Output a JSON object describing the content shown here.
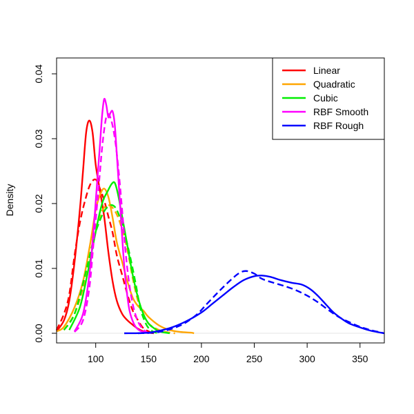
{
  "chart_data": {
    "type": "line",
    "title": "",
    "xlabel": "",
    "ylabel": "Density",
    "xlim": [
      63,
      373
    ],
    "ylim": [
      0,
      0.042
    ],
    "x_ticks": [
      100,
      150,
      200,
      250,
      300,
      350
    ],
    "y_ticks": [
      0.0,
      0.01,
      0.02,
      0.03,
      0.04
    ],
    "y_tick_labels": [
      "0.00",
      "0.01",
      "0.02",
      "0.03",
      "0.04"
    ],
    "grid": false,
    "legend_position": "top-right",
    "series": [
      {
        "name": "Linear",
        "color": "#ff0000",
        "style": "solid",
        "x": [
          63,
          70,
          75,
          80,
          85,
          88,
          91,
          94,
          97,
          100,
          104,
          108,
          112,
          116,
          120,
          125,
          130,
          135,
          140,
          145,
          150,
          155
        ],
        "y": [
          0.0003,
          0.002,
          0.005,
          0.011,
          0.019,
          0.025,
          0.031,
          0.0328,
          0.031,
          0.026,
          0.022,
          0.018,
          0.0125,
          0.008,
          0.005,
          0.003,
          0.002,
          0.0013,
          0.0007,
          0.0003,
          0.0001,
          0
        ]
      },
      {
        "name": "Linear",
        "color": "#ff0000",
        "style": "dashed",
        "x": [
          63,
          70,
          75,
          80,
          85,
          90,
          95,
          100,
          104,
          108,
          112,
          116,
          120,
          125,
          130,
          135,
          140,
          145,
          150,
          155
        ],
        "y": [
          0.0005,
          0.003,
          0.006,
          0.012,
          0.017,
          0.0205,
          0.023,
          0.0237,
          0.0223,
          0.0205,
          0.018,
          0.0155,
          0.012,
          0.009,
          0.006,
          0.0035,
          0.002,
          0.0008,
          0.0003,
          0
        ]
      },
      {
        "name": "Quadratic",
        "color": "#ffa500",
        "style": "solid",
        "x": [
          63,
          70,
          80,
          88,
          95,
          100,
          104,
          108,
          112,
          116,
          120,
          125,
          130,
          135,
          140,
          145,
          150,
          160,
          170,
          180,
          190,
          193
        ],
        "y": [
          0.0003,
          0.001,
          0.004,
          0.008,
          0.014,
          0.019,
          0.0213,
          0.0223,
          0.021,
          0.0178,
          0.014,
          0.011,
          0.008,
          0.0055,
          0.0042,
          0.0035,
          0.0025,
          0.0012,
          0.0005,
          0.0002,
          0.0001,
          0
        ]
      },
      {
        "name": "Quadratic",
        "color": "#ffa500",
        "style": "dashed",
        "x": [
          70,
          80,
          88,
          95,
          100,
          105,
          110,
          115,
          120,
          125,
          130,
          135,
          140,
          145,
          150,
          160,
          170,
          175
        ],
        "y": [
          0.0005,
          0.003,
          0.007,
          0.012,
          0.016,
          0.0185,
          0.0197,
          0.0195,
          0.0183,
          0.016,
          0.0128,
          0.0085,
          0.005,
          0.003,
          0.0015,
          0.0005,
          0.0001,
          0
        ]
      },
      {
        "name": "Cubic",
        "color": "#00ee00",
        "style": "solid",
        "x": [
          75,
          85,
          92,
          98,
          103,
          107,
          111,
          115,
          118,
          121,
          125,
          130,
          135,
          140,
          145,
          150,
          155,
          160,
          170
        ],
        "y": [
          0.0005,
          0.004,
          0.009,
          0.014,
          0.018,
          0.0205,
          0.0218,
          0.023,
          0.0232,
          0.0215,
          0.018,
          0.0135,
          0.009,
          0.0055,
          0.003,
          0.0015,
          0.0008,
          0.0003,
          0
        ]
      },
      {
        "name": "Cubic",
        "color": "#00ee00",
        "style": "dashed",
        "x": [
          70,
          80,
          90,
          98,
          103,
          108,
          113,
          118,
          123,
          128,
          133,
          138,
          142,
          146,
          150,
          155,
          160
        ],
        "y": [
          0.0005,
          0.003,
          0.009,
          0.0145,
          0.017,
          0.0188,
          0.0197,
          0.0195,
          0.0178,
          0.015,
          0.0115,
          0.0075,
          0.004,
          0.002,
          0.0008,
          0.0002,
          0
        ]
      },
      {
        "name": "RBF Smooth",
        "color": "#ff00ff",
        "style": "solid",
        "x": [
          80,
          88,
          94,
          98,
          101,
          104,
          106,
          108,
          110,
          112,
          114,
          116,
          118,
          120,
          123,
          126,
          129,
          132,
          136,
          140,
          145,
          150
        ],
        "y": [
          0.0003,
          0.003,
          0.009,
          0.016,
          0.0225,
          0.029,
          0.0335,
          0.0361,
          0.0352,
          0.0333,
          0.034,
          0.0342,
          0.0322,
          0.0275,
          0.02,
          0.0125,
          0.007,
          0.0035,
          0.0015,
          0.0006,
          0.0002,
          0
        ]
      },
      {
        "name": "RBF Smooth",
        "color": "#ff00ff",
        "style": "dashed",
        "x": [
          80,
          88,
          94,
          98,
          102,
          106,
          109,
          111,
          113,
          116,
          119,
          122,
          125,
          128,
          131,
          135,
          140,
          145,
          150
        ],
        "y": [
          0.0002,
          0.002,
          0.007,
          0.014,
          0.021,
          0.0285,
          0.0325,
          0.0337,
          0.0336,
          0.032,
          0.029,
          0.0245,
          0.019,
          0.013,
          0.0085,
          0.0045,
          0.0018,
          0.0006,
          0
        ]
      },
      {
        "name": "RBF Rough",
        "color": "#0000ff",
        "style": "solid",
        "x": [
          127,
          150,
          170,
          185,
          200,
          210,
          220,
          230,
          240,
          250,
          257,
          265,
          275,
          285,
          295,
          303,
          310,
          318,
          325,
          333,
          340,
          350,
          360,
          373
        ],
        "y": [
          0,
          0.0001,
          0.0008,
          0.0018,
          0.0032,
          0.0045,
          0.0058,
          0.0071,
          0.0082,
          0.0088,
          0.0089,
          0.0087,
          0.0082,
          0.0078,
          0.0075,
          0.0068,
          0.0058,
          0.0044,
          0.0032,
          0.0022,
          0.0015,
          0.0009,
          0.0004,
          0
        ]
      },
      {
        "name": "RBF Rough",
        "color": "#0000ff",
        "style": "dashed",
        "x": [
          140,
          160,
          180,
          195,
          205,
          215,
          225,
          235,
          242,
          250,
          256,
          262,
          270,
          280,
          290,
          300,
          310,
          320,
          330,
          340,
          350,
          360,
          373
        ],
        "y": [
          0,
          0.0002,
          0.0012,
          0.0028,
          0.0045,
          0.0062,
          0.0078,
          0.0092,
          0.0096,
          0.0092,
          0.0085,
          0.0081,
          0.0077,
          0.0072,
          0.0066,
          0.0058,
          0.0048,
          0.0036,
          0.0025,
          0.0017,
          0.001,
          0.0005,
          0
        ]
      }
    ],
    "legend": [
      {
        "label": "Linear",
        "color": "#ff0000"
      },
      {
        "label": "Quadratic",
        "color": "#ffa500"
      },
      {
        "label": "Cubic",
        "color": "#00ee00"
      },
      {
        "label": "RBF Smooth",
        "color": "#ff00ff"
      },
      {
        "label": "RBF Rough",
        "color": "#0000ff"
      }
    ]
  }
}
